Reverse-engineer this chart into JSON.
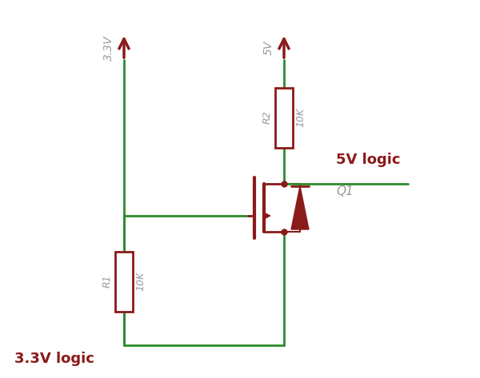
{
  "bg_color": "#ffffff",
  "wire_color": "#2d8a2d",
  "component_color": "#8b1a1a",
  "label_color_dark": "#8b1a1a",
  "label_color_gray": "#999999",
  "vcc33_label": "3.3V",
  "vcc5_label": "5V",
  "r1_label": "R1",
  "r1_value": "10K",
  "r2_label": "R2",
  "r2_value": "10K",
  "q1_label": "Q1",
  "logic33_label": "3.3V logic",
  "logic5_label": "5V logic",
  "figsize": [
    6.0,
    4.73
  ],
  "dpi": 100
}
